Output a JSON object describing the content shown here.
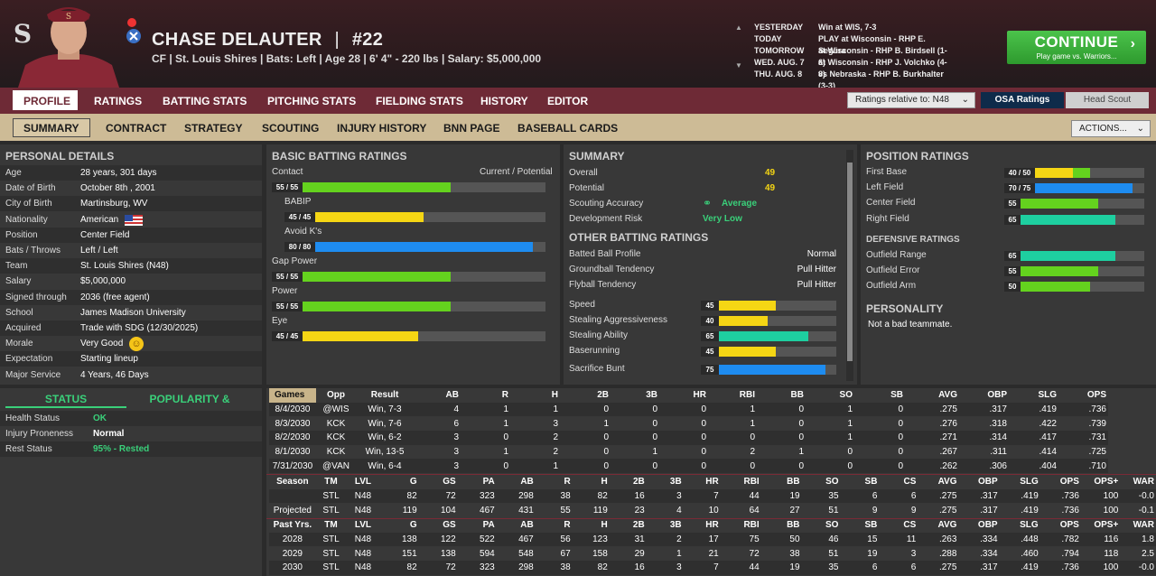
{
  "player": {
    "name": "CHASE DELAUTER",
    "number": "#22",
    "meta": "CF | St. Louis Shires  |  Bats: Left  |  Age 28  |  6' 4\" - 220 lbs  |  Salary: $5,000,000",
    "name_sep": "|"
  },
  "schedule": [
    {
      "day": "YESTERDAY",
      "game": "Win at WIS, 7-3"
    },
    {
      "day": "TODAY",
      "game": "PLAY at Wisconsin - RHP E. Segura"
    },
    {
      "day": "TOMORROW",
      "game": "at Wisconsin - RHP B. Birdsell (1-6)"
    },
    {
      "day": "WED. AUG. 7",
      "game": "at Wisconsin - RHP J. Volchko (4-8)"
    },
    {
      "day": "THU. AUG. 8",
      "game": "vs Nebraska - RHP B. Burkhalter (3-3)"
    }
  ],
  "continue": {
    "label": "CONTINUE",
    "sub": "Play game vs. Warriors..."
  },
  "nav1": [
    "PROFILE",
    "RATINGS",
    "BATTING STATS",
    "PITCHING STATS",
    "FIELDING STATS",
    "HISTORY",
    "EDITOR"
  ],
  "ratings_relative": "Ratings relative to: N48",
  "osa_label": "OSA Ratings",
  "scout_label": "Head Scout",
  "nav2": [
    "SUMMARY",
    "CONTRACT",
    "STRATEGY",
    "SCOUTING",
    "INJURY HISTORY",
    "BNN PAGE",
    "BASEBALL CARDS"
  ],
  "actions_label": "ACTIONS...",
  "personal": {
    "title": "PERSONAL DETAILS",
    "rows": [
      {
        "k": "Age",
        "v": "28 years, 301 days"
      },
      {
        "k": "Date of Birth",
        "v": "October 8th , 2001"
      },
      {
        "k": "City of Birth",
        "v": "Martinsburg, WV"
      },
      {
        "k": "Nationality",
        "v": "American"
      },
      {
        "k": "Position",
        "v": "Center Field"
      },
      {
        "k": "Bats / Throws",
        "v": "Left / Left"
      },
      {
        "k": "Team",
        "v": "St. Louis Shires (N48)"
      },
      {
        "k": "Salary",
        "v": "$5,000,000"
      },
      {
        "k": "Signed through",
        "v": "2036 (free agent)"
      },
      {
        "k": "School",
        "v": "James Madison University"
      },
      {
        "k": "Acquired",
        "v": "Trade with SDG (12/30/2025)"
      },
      {
        "k": "Morale",
        "v": "Very Good"
      },
      {
        "k": "Expectation",
        "v": "Starting lineup"
      },
      {
        "k": "Major Service",
        "v": "4 Years, 46 Days"
      }
    ]
  },
  "status": {
    "tab1": "STATUS",
    "tab2": "POPULARITY & MORALE",
    "rows": [
      {
        "k": "Health Status",
        "v": "OK",
        "c": "#3ad07a"
      },
      {
        "k": "Injury Proneness",
        "v": "Normal",
        "c": "#ffffff"
      },
      {
        "k": "Rest Status",
        "v": "95% - Rested",
        "c": "#3ad07a"
      }
    ]
  },
  "batting": {
    "title": "BASIC BATTING RATINGS",
    "cp": "Current / Potential",
    "items": [
      {
        "name": "Contact",
        "label": "55 / 55",
        "value": 55,
        "color": "#64d21e",
        "indent": false
      },
      {
        "name": "BABIP",
        "label": "45 / 45",
        "value": 45,
        "color": "#f5d614",
        "indent": true
      },
      {
        "name": "Avoid K's",
        "label": "80 / 80",
        "value": 80,
        "color": "#1e8cf0",
        "indent": true
      },
      {
        "name": "Gap Power",
        "label": "55 / 55",
        "value": 55,
        "color": "#64d21e",
        "indent": false
      },
      {
        "name": "Power",
        "label": "55 / 55",
        "value": 55,
        "color": "#64d21e",
        "indent": false
      },
      {
        "name": "Eye",
        "label": "45 / 45",
        "value": 45,
        "color": "#f5d614",
        "indent": false
      }
    ]
  },
  "summary": {
    "title": "SUMMARY",
    "overall_k": "Overall",
    "overall": "49",
    "potential_k": "Potential",
    "potential": "49",
    "scout_k": "Scouting Accuracy",
    "scout": "Average",
    "risk_k": "Development Risk",
    "risk": "Very Low",
    "other_title": "OTHER BATTING RATINGS",
    "other": [
      {
        "k": "Batted Ball Profile",
        "v": "Normal"
      },
      {
        "k": "Groundball Tendency",
        "v": "Pull Hitter"
      },
      {
        "k": "Flyball Tendency",
        "v": "Pull Hitter"
      }
    ],
    "run": [
      {
        "k": "Speed",
        "label": "45",
        "value": 45,
        "color": "#f5d614"
      },
      {
        "k": "Stealing Aggressiveness",
        "label": "40",
        "value": 40,
        "color": "#f5d614"
      },
      {
        "k": "Stealing Ability",
        "label": "65",
        "value": 65,
        "color": "#1ecfa0"
      },
      {
        "k": "Baserunning",
        "label": "45",
        "value": 45,
        "color": "#f5d614"
      },
      {
        "k": "Sacrifice Bunt",
        "label": "75",
        "value": 75,
        "color": "#1e8cf0"
      }
    ]
  },
  "position": {
    "title": "POSITION RATINGS",
    "items": [
      {
        "k": "First Base",
        "label": "40 / 50",
        "cur": 40,
        "pot": 50,
        "color": "#f5d614",
        "pcolor": "#64d21e"
      },
      {
        "k": "Left Field",
        "label": "70 / 75",
        "cur": 70,
        "pot": 75,
        "color": "#1e8cf0",
        "pcolor": "#1e8cf0"
      },
      {
        "k": "Center Field",
        "label": "55",
        "cur": 55,
        "pot": 55,
        "color": "#64d21e",
        "pcolor": "#64d21e"
      },
      {
        "k": "Right Field",
        "label": "65",
        "cur": 65,
        "pot": 65,
        "color": "#1ecfa0",
        "pcolor": "#1ecfa0"
      }
    ],
    "def_title": "DEFENSIVE RATINGS",
    "def": [
      {
        "k": "Outfield Range",
        "label": "65",
        "cur": 65,
        "color": "#1ecfa0"
      },
      {
        "k": "Outfield Error",
        "label": "55",
        "cur": 55,
        "color": "#64d21e"
      },
      {
        "k": "Outfield Arm",
        "label": "50",
        "cur": 50,
        "color": "#64d21e"
      }
    ],
    "pers_title": "PERSONALITY",
    "pers": "Not a bad teammate."
  },
  "games": {
    "dropdown": "Games",
    "headers": [
      "Opp",
      "Result",
      "AB",
      "R",
      "H",
      "2B",
      "3B",
      "HR",
      "RBI",
      "BB",
      "SO",
      "SB",
      "AVG",
      "OBP",
      "SLG",
      "OPS"
    ],
    "rows": [
      [
        "8/4/2030",
        "@WIS",
        "Win, 7-3",
        "4",
        "1",
        "1",
        "0",
        "0",
        "0",
        "1",
        "0",
        "1",
        "0",
        ".275",
        ".317",
        ".419",
        ".736"
      ],
      [
        "8/3/2030",
        "KCK",
        "Win, 7-6",
        "6",
        "1",
        "3",
        "1",
        "0",
        "0",
        "1",
        "0",
        "1",
        "0",
        ".276",
        ".318",
        ".422",
        ".739"
      ],
      [
        "8/2/2030",
        "KCK",
        "Win, 6-2",
        "3",
        "0",
        "2",
        "0",
        "0",
        "0",
        "0",
        "0",
        "1",
        "0",
        ".271",
        ".314",
        ".417",
        ".731"
      ],
      [
        "8/1/2030",
        "KCK",
        "Win, 13-5",
        "3",
        "1",
        "2",
        "0",
        "1",
        "0",
        "2",
        "1",
        "0",
        "0",
        ".267",
        ".311",
        ".414",
        ".725"
      ],
      [
        "7/31/2030",
        "@VAN",
        "Win, 6-4",
        "3",
        "0",
        "1",
        "0",
        "0",
        "0",
        "0",
        "0",
        "0",
        "0",
        ".262",
        ".306",
        ".404",
        ".710"
      ]
    ]
  },
  "season": {
    "headers": [
      "Season",
      "TM",
      "LVL",
      "G",
      "GS",
      "PA",
      "AB",
      "R",
      "H",
      "2B",
      "3B",
      "HR",
      "RBI",
      "BB",
      "SO",
      "SB",
      "CS",
      "AVG",
      "OBP",
      "SLG",
      "OPS",
      "OPS+",
      "WAR"
    ],
    "rows": [
      [
        "",
        "STL",
        "N48",
        "82",
        "72",
        "323",
        "298",
        "38",
        "82",
        "16",
        "3",
        "7",
        "44",
        "19",
        "35",
        "6",
        "6",
        ".275",
        ".317",
        ".419",
        ".736",
        "100",
        "-0.0"
      ],
      [
        "Projected",
        "STL",
        "N48",
        "119",
        "104",
        "467",
        "431",
        "55",
        "119",
        "23",
        "4",
        "10",
        "64",
        "27",
        "51",
        "9",
        "9",
        ".275",
        ".317",
        ".419",
        ".736",
        "100",
        "-0.1"
      ]
    ]
  },
  "past": {
    "headers": [
      "Past Yrs.",
      "TM",
      "LVL",
      "G",
      "GS",
      "PA",
      "AB",
      "R",
      "H",
      "2B",
      "3B",
      "HR",
      "RBI",
      "BB",
      "SO",
      "SB",
      "CS",
      "AVG",
      "OBP",
      "SLG",
      "OPS",
      "OPS+",
      "WAR"
    ],
    "rows": [
      [
        "2028",
        "STL",
        "N48",
        "138",
        "122",
        "522",
        "467",
        "56",
        "123",
        "31",
        "2",
        "17",
        "75",
        "50",
        "46",
        "15",
        "11",
        ".263",
        ".334",
        ".448",
        ".782",
        "116",
        "1.8"
      ],
      [
        "2029",
        "STL",
        "N48",
        "151",
        "138",
        "594",
        "548",
        "67",
        "158",
        "29",
        "1",
        "21",
        "72",
        "38",
        "51",
        "19",
        "3",
        ".288",
        ".334",
        ".460",
        ".794",
        "118",
        "2.5"
      ],
      [
        "2030",
        "STL",
        "N48",
        "82",
        "72",
        "323",
        "298",
        "38",
        "82",
        "16",
        "3",
        "7",
        "44",
        "19",
        "35",
        "6",
        "6",
        ".275",
        ".317",
        ".419",
        ".736",
        "100",
        "-0.0"
      ]
    ]
  }
}
